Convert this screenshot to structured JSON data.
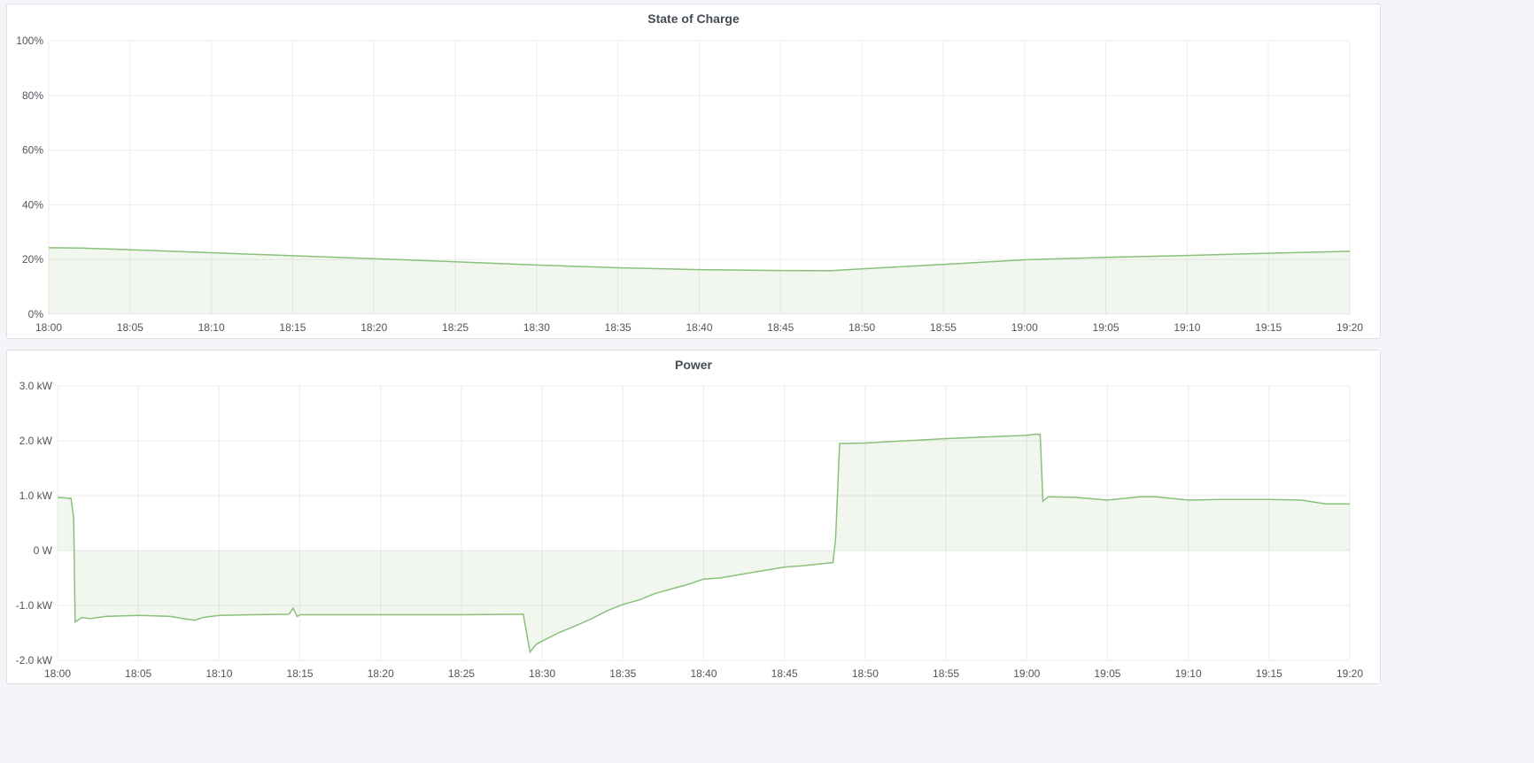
{
  "chart_data": [
    {
      "type": "area",
      "title": "State of Charge",
      "xlabel": "",
      "ylabel": "",
      "x_ticks": [
        "18:00",
        "18:05",
        "18:10",
        "18:15",
        "18:20",
        "18:25",
        "18:30",
        "18:35",
        "18:40",
        "18:45",
        "18:50",
        "18:55",
        "19:00",
        "19:05",
        "19:10",
        "19:15",
        "19:20"
      ],
      "y_ticks": [
        "0%",
        "20%",
        "40%",
        "60%",
        "80%",
        "100%"
      ],
      "ylim": [
        0,
        100
      ],
      "xlim": [
        "18:00",
        "19:20"
      ],
      "grid": true,
      "color": "#8ac07a",
      "x": [
        "18:00",
        "18:02",
        "18:05",
        "18:10",
        "18:15",
        "18:20",
        "18:25",
        "18:30",
        "18:35",
        "18:40",
        "18:45",
        "18:48",
        "18:50",
        "18:55",
        "19:00",
        "19:05",
        "19:10",
        "19:15",
        "19:20"
      ],
      "values": [
        24.3,
        24.2,
        23.6,
        22.5,
        21.4,
        20.3,
        19.2,
        18.0,
        17.0,
        16.3,
        16.0,
        15.9,
        16.6,
        18.2,
        19.9,
        20.8,
        21.5,
        22.3,
        23.0
      ]
    },
    {
      "type": "area",
      "title": "Power",
      "xlabel": "",
      "ylabel": "",
      "x_ticks": [
        "18:00",
        "18:05",
        "18:10",
        "18:15",
        "18:20",
        "18:25",
        "18:30",
        "18:35",
        "18:40",
        "18:45",
        "18:50",
        "18:55",
        "19:00",
        "19:05",
        "19:10",
        "19:15",
        "19:20"
      ],
      "y_ticks": [
        "-2.0 kW",
        "-1.0 kW",
        "0 W",
        "1.0 kW",
        "2.0 kW",
        "3.0 kW"
      ],
      "ylim": [
        -2.0,
        3.0
      ],
      "unit": "kW",
      "xlim": [
        "18:00",
        "19:20"
      ],
      "grid": true,
      "color": "#8ac07a",
      "x": [
        "18:00:00",
        "18:00:50",
        "18:01:00",
        "18:01:05",
        "18:01:30",
        "18:02:00",
        "18:03:00",
        "18:05:00",
        "18:06:00",
        "18:07:00",
        "18:08:00",
        "18:08:30",
        "18:09:00",
        "18:10:00",
        "18:12:00",
        "18:14:20",
        "18:14:35",
        "18:14:50",
        "18:15:00",
        "18:17:00",
        "18:20:00",
        "18:25:00",
        "18:28:50",
        "18:29:15",
        "18:29:40",
        "18:30:00",
        "18:31:00",
        "18:32:00",
        "18:33:00",
        "18:34:00",
        "18:35:00",
        "18:36:00",
        "18:37:00",
        "18:38:00",
        "18:39:00",
        "18:40:00",
        "18:41:00",
        "18:42:00",
        "18:43:00",
        "18:44:00",
        "18:45:00",
        "18:46:00",
        "18:47:00",
        "18:48:00",
        "18:48:10",
        "18:48:25",
        "18:50:00",
        "18:55:00",
        "19:00:00",
        "19:00:30",
        "19:00:50",
        "19:01:00",
        "19:01:20",
        "19:03:00",
        "19:05:00",
        "19:07:00",
        "19:08:00",
        "19:10:00",
        "19:12:00",
        "19:15:00",
        "19:17:00",
        "19:18:30",
        "19:20:00"
      ],
      "values": [
        0.97,
        0.95,
        0.6,
        -1.3,
        -1.22,
        -1.24,
        -1.2,
        -1.18,
        -1.19,
        -1.2,
        -1.25,
        -1.27,
        -1.22,
        -1.18,
        -1.17,
        -1.16,
        -1.05,
        -1.2,
        -1.17,
        -1.17,
        -1.17,
        -1.17,
        -1.16,
        -1.85,
        -1.7,
        -1.65,
        -1.5,
        -1.38,
        -1.25,
        -1.1,
        -0.98,
        -0.9,
        -0.78,
        -0.7,
        -0.62,
        -0.52,
        -0.5,
        -0.45,
        -0.4,
        -0.35,
        -0.3,
        -0.28,
        -0.25,
        -0.22,
        0.2,
        1.95,
        1.96,
        2.04,
        2.1,
        2.12,
        2.12,
        0.9,
        0.98,
        0.97,
        0.92,
        0.98,
        0.98,
        0.92,
        0.93,
        0.93,
        0.92,
        0.85,
        0.85
      ]
    }
  ]
}
